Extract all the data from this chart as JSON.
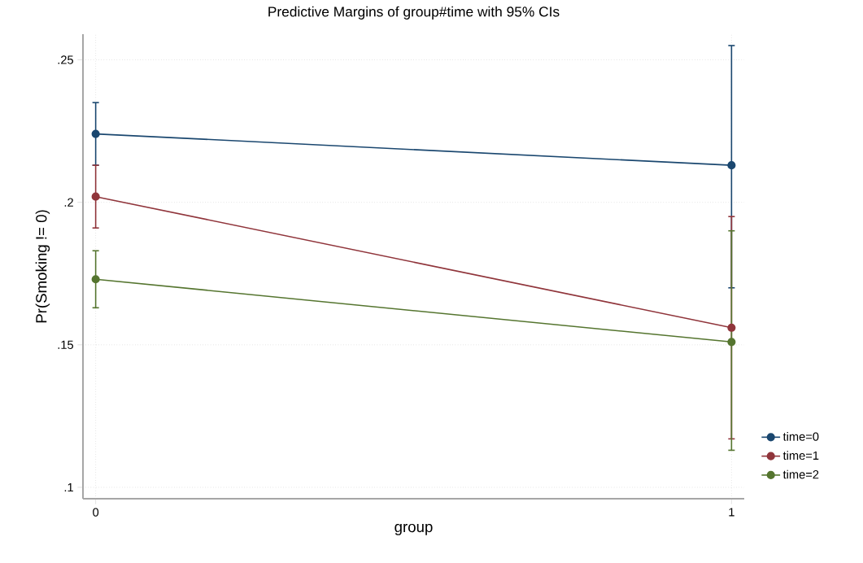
{
  "chart_data": {
    "type": "line",
    "title": "Predictive Margins of group#time with 95% CIs",
    "xlabel": "group",
    "ylabel": "Pr(Smoking != 0)",
    "x": [
      0,
      1
    ],
    "series": [
      {
        "name": "time=0",
        "color": "#1a476f",
        "values": [
          0.224,
          0.213
        ],
        "errors": [
          [
            0.213,
            0.235
          ],
          [
            0.17,
            0.255
          ]
        ]
      },
      {
        "name": "time=1",
        "color": "#90353b",
        "values": [
          0.202,
          0.156
        ],
        "errors": [
          [
            0.191,
            0.213
          ],
          [
            0.117,
            0.195
          ]
        ]
      },
      {
        "name": "time=2",
        "color": "#55752f",
        "values": [
          0.173,
          0.151
        ],
        "errors": [
          [
            0.163,
            0.183
          ],
          [
            0.113,
            0.19
          ]
        ]
      }
    ],
    "xlim": [
      -0.02,
      1.02
    ],
    "ylim": [
      0.096,
      0.259
    ],
    "xticks": [
      0,
      1
    ],
    "yticks": [
      {
        "value": 0.1,
        "label": ".1"
      },
      {
        "value": 0.15,
        "label": ".15"
      },
      {
        "value": 0.2,
        "label": ".2"
      },
      {
        "value": 0.25,
        "label": ".25"
      }
    ],
    "grid": true,
    "legend": "right",
    "marker": "circle",
    "line_style": "solid"
  }
}
